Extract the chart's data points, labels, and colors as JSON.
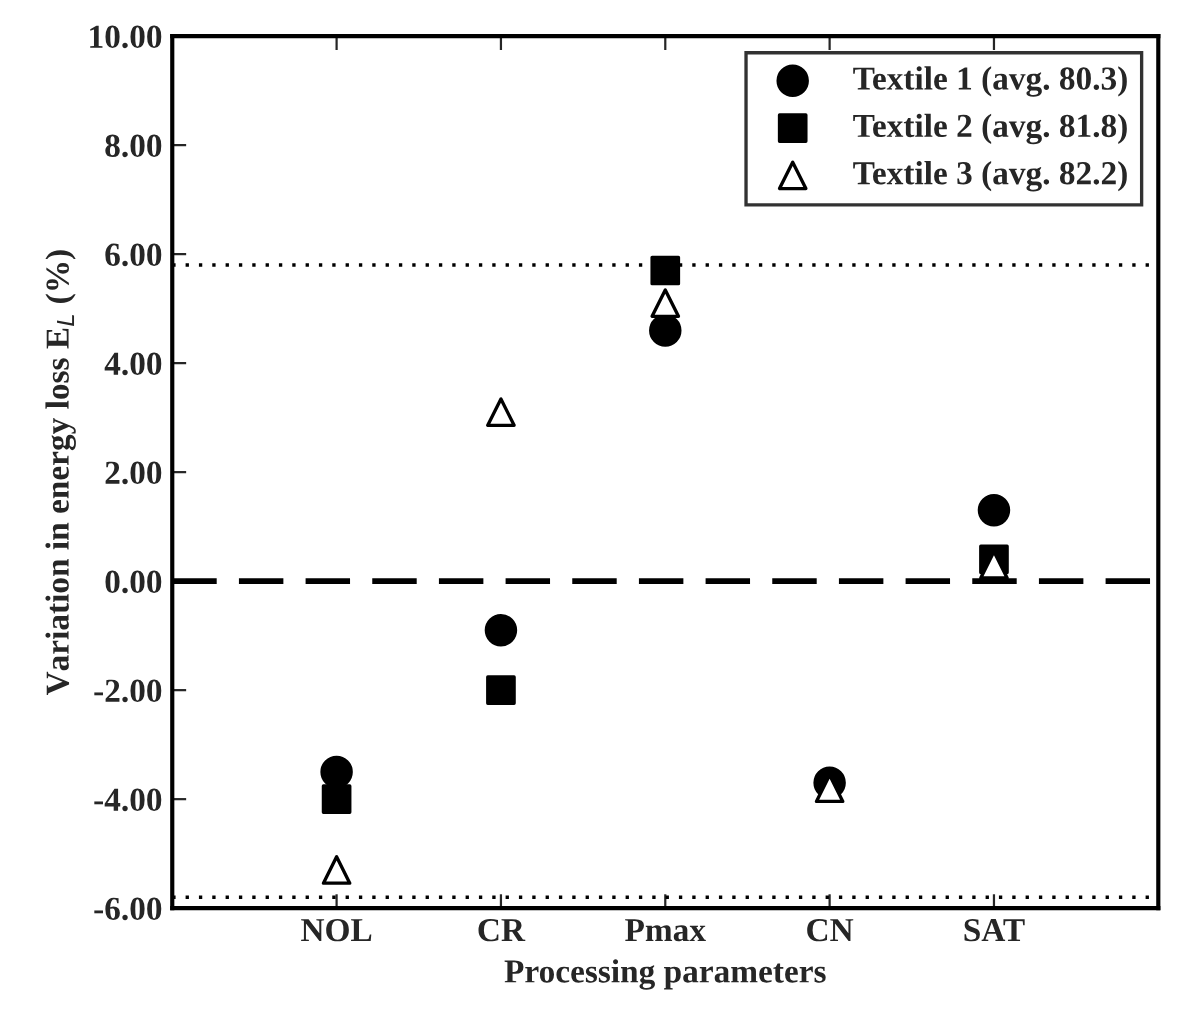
{
  "chart_data": {
    "type": "scatter",
    "xlabel": "Processing parameters",
    "ylabel": "Variation in energy loss E$_{L}$ (%)",
    "categories": [
      "NOL",
      "CR",
      "Pmax",
      "CN",
      "SAT"
    ],
    "series": [
      {
        "name": "Textile 1 (avg. 80.3)",
        "color": "#000000",
        "marker": "circle",
        "values": [
          -3.5,
          -0.9,
          4.6,
          -3.7,
          1.3
        ]
      },
      {
        "name": "Textile 2 (avg. 81.8)",
        "color": "#000000",
        "marker": "square",
        "values": [
          -4.0,
          -2.0,
          5.7,
          null,
          0.4
        ]
      },
      {
        "name": "Textile 3 (avg. 82.2)",
        "color": "#000000",
        "marker": "triangle",
        "values": [
          -5.3,
          3.1,
          5.1,
          -3.8,
          0.3
        ]
      }
    ],
    "ylim": [
      -6,
      10
    ],
    "yticks": [
      {
        "value": -6,
        "label": "-6.00"
      },
      {
        "value": -4,
        "label": "-4.00"
      },
      {
        "value": -2,
        "label": "-2.00"
      },
      {
        "value": 0,
        "label": "0.00"
      },
      {
        "value": 2,
        "label": "2.00"
      },
      {
        "value": 4,
        "label": "4.00"
      },
      {
        "value": 6,
        "label": "6.00"
      },
      {
        "value": 8,
        "label": "8.00"
      },
      {
        "value": 10,
        "label": "10.00"
      }
    ],
    "ref_lines": [
      {
        "axis": "y",
        "value": 0,
        "line_style": "dashed",
        "color": "#000000"
      },
      {
        "axis": "y",
        "value": 5.8,
        "line_style": "dotted",
        "color": "#000000"
      },
      {
        "axis": "y",
        "value": -5.8,
        "line_style": "dotted",
        "color": "#000000"
      }
    ],
    "grid": false,
    "legend": "top right"
  }
}
